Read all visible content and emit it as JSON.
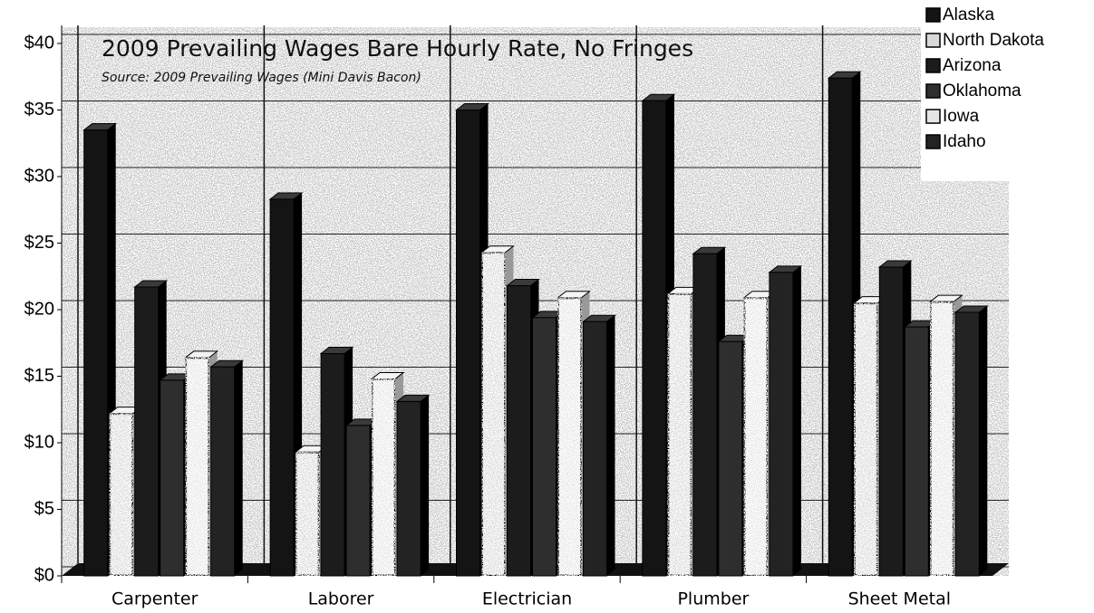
{
  "chart_data": {
    "type": "bar",
    "title": "2009 Prevailing Wages Bare Hourly Rate, No Fringes",
    "subtitle": "Source:  2009 Prevailing Wages (Mini Davis Bacon)",
    "categories": [
      "Carpenter",
      "Laborer",
      "Electrician",
      "Plumber",
      "Sheet Metal"
    ],
    "series": [
      {
        "name": "Alaska",
        "color": "#141414",
        "values": [
          33.5,
          28.3,
          35,
          35.7,
          37.4
        ]
      },
      {
        "name": "North Dakota",
        "color": "#d9d9d9",
        "values": [
          12.2,
          9.3,
          24.3,
          21.2,
          20.5
        ]
      },
      {
        "name": "Arizona",
        "color": "#1c1c1c",
        "values": [
          21.7,
          16.7,
          21.8,
          24.2,
          23.2
        ]
      },
      {
        "name": "Oklahoma",
        "color": "#2e2e2e",
        "values": [
          14.7,
          11.3,
          19.4,
          17.6,
          18.7
        ]
      },
      {
        "name": "Iowa",
        "color": "#e6e6e6",
        "values": [
          16.4,
          14.8,
          20.9,
          20.9,
          20.6
        ]
      },
      {
        "name": "Idaho",
        "color": "#232323",
        "values": [
          15.7,
          13.1,
          19.1,
          22.8,
          19.8
        ]
      }
    ],
    "ylim": [
      0,
      40
    ],
    "yticks": [
      {
        "value": 0,
        "label": "$0"
      },
      {
        "value": 5,
        "label": "$5"
      },
      {
        "value": 10,
        "label": "$10"
      },
      {
        "value": 15,
        "label": "$15"
      },
      {
        "value": 20,
        "label": "$20"
      },
      {
        "value": 25,
        "label": "$25"
      },
      {
        "value": 30,
        "label": "$30"
      },
      {
        "value": 35,
        "label": "$35"
      },
      {
        "value": 40,
        "label": "$40"
      }
    ],
    "grid": true,
    "legend": "top-right"
  }
}
